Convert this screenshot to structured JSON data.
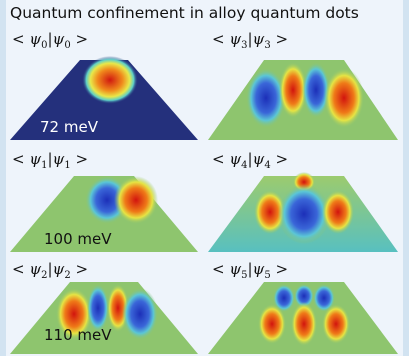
{
  "title": "Quantum confinement in alloy quantum dots",
  "panels": [
    {
      "label_left": "< ψ",
      "sub1": "0",
      "bar": "|ψ",
      "sub2": "0",
      "label_right": " >",
      "energy": "72 meV"
    },
    {
      "label_left": "< ψ",
      "sub1": "3",
      "bar": "|ψ",
      "sub2": "3",
      "label_right": " >",
      "energy": ""
    },
    {
      "label_left": "< ψ",
      "sub1": "1",
      "bar": "|ψ",
      "sub2": "1",
      "label_right": " >",
      "energy": "100 meV"
    },
    {
      "label_left": "< ψ",
      "sub1": "4",
      "bar": "|ψ",
      "sub2": "4",
      "label_right": " >",
      "energy": ""
    },
    {
      "label_left": "< ψ",
      "sub1": "2",
      "bar": "|ψ",
      "sub2": "2",
      "label_right": " >",
      "energy": "110 meV"
    },
    {
      "label_left": "< ψ",
      "sub1": "5",
      "bar": "|ψ",
      "sub2": "5",
      "label_right": " >",
      "energy": ""
    }
  ],
  "colors": {
    "background": "#d2e3f1",
    "panel_bg": "#eef4fb",
    "pyramid_base": "#8ec56e",
    "ground_state_base": "#24307c",
    "positive_lobe": "#e3231b",
    "negative_lobe": "#2a45c8"
  }
}
